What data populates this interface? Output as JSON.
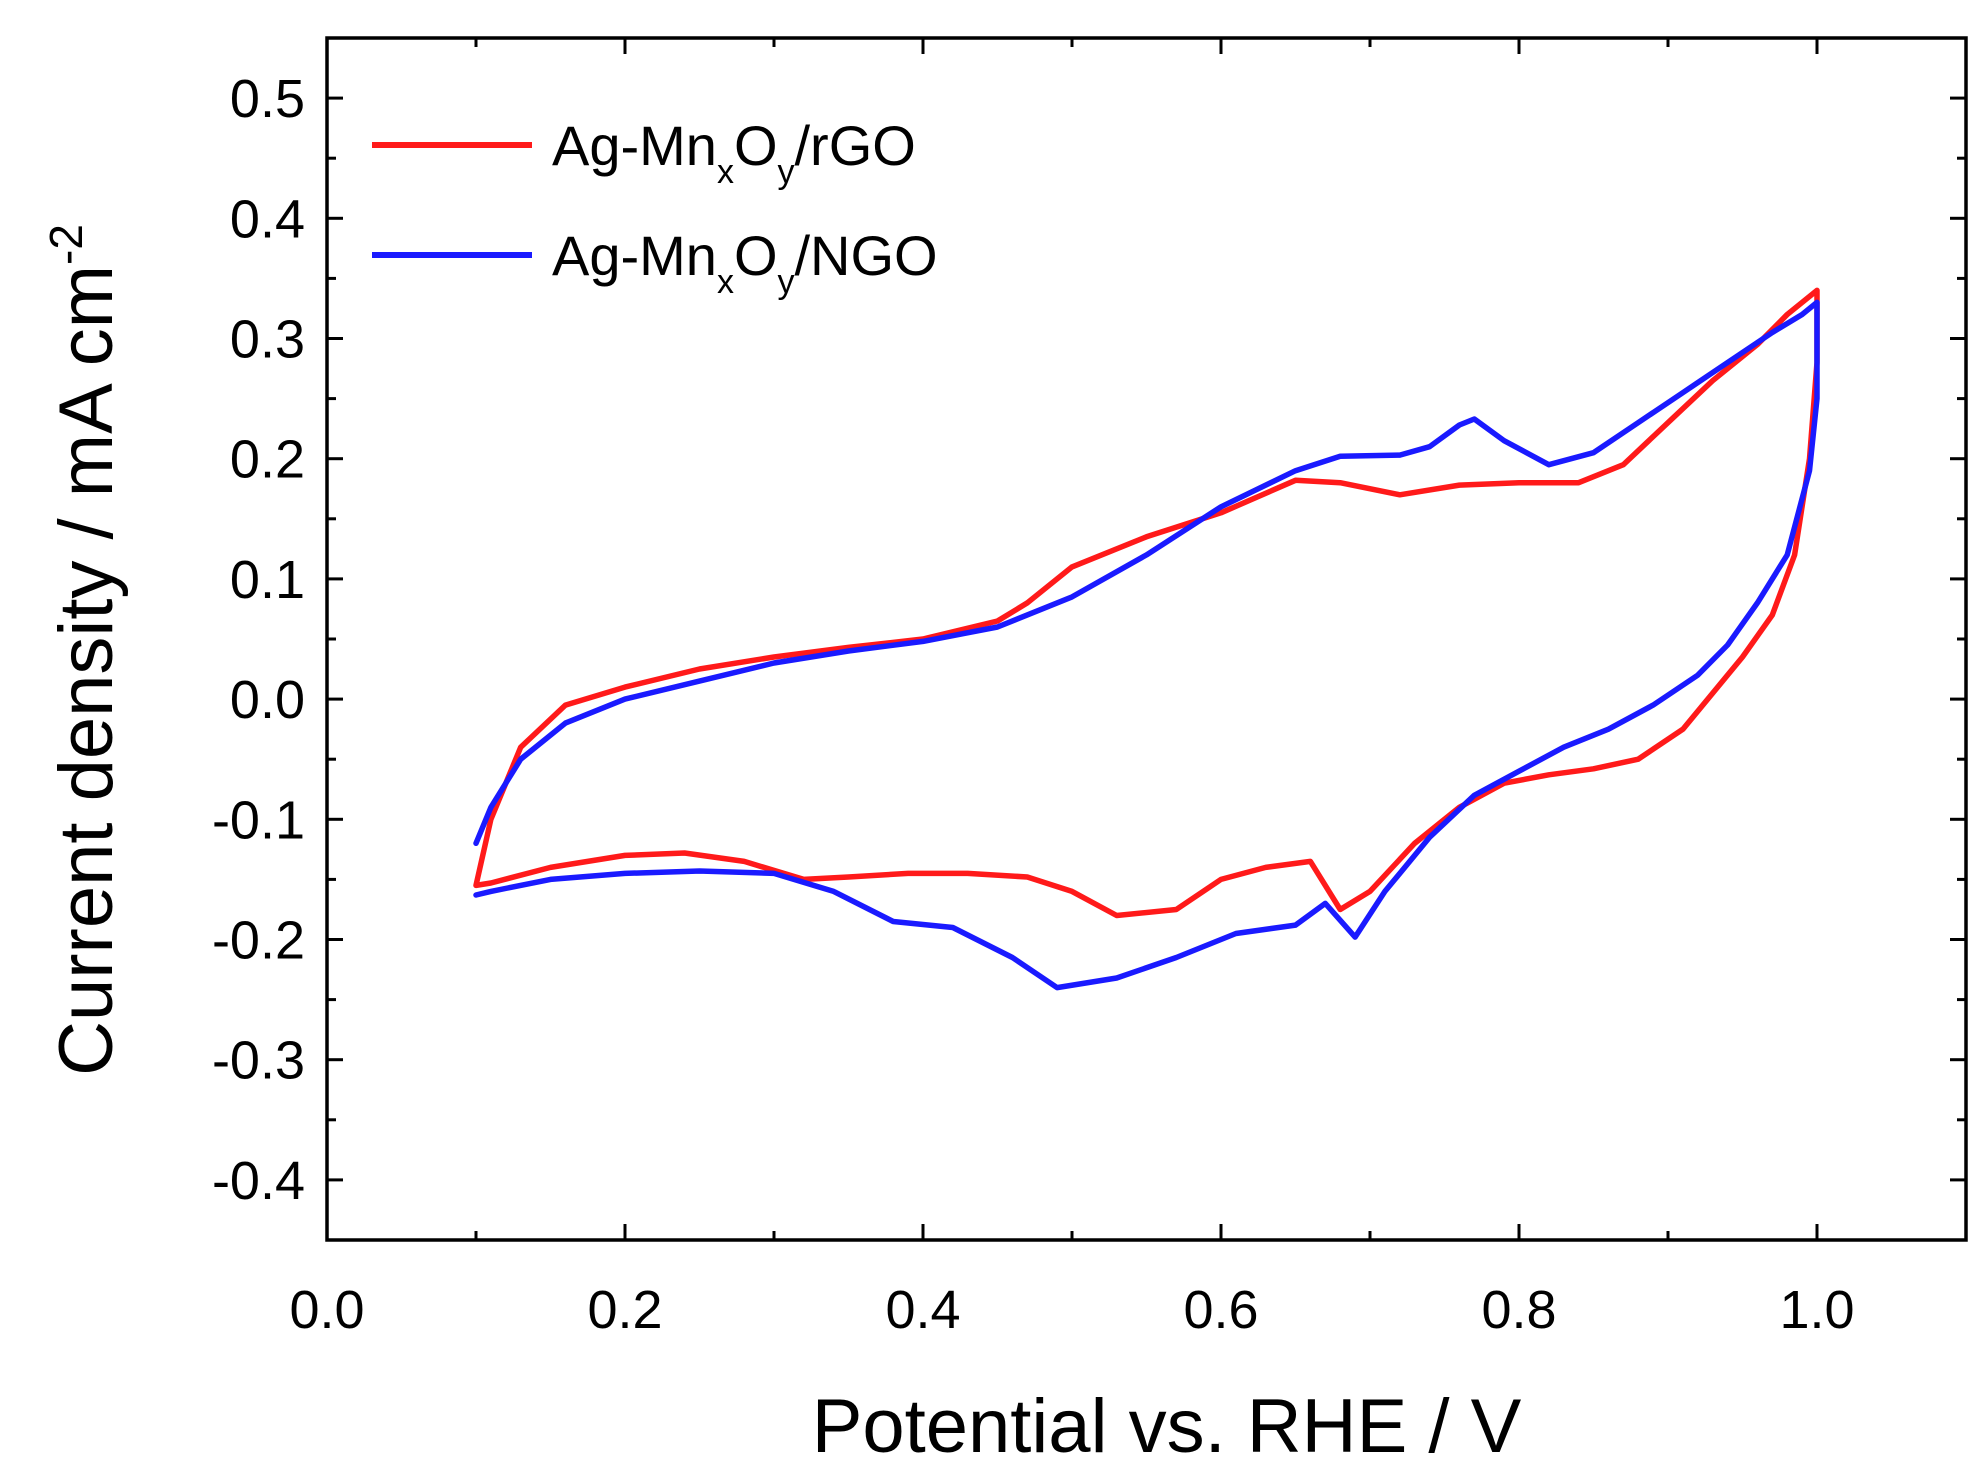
{
  "chart_data": {
    "type": "line",
    "title": "",
    "xlabel": "Potential vs. RHE  /  V",
    "ylabel": "Current density  /   mA cm",
    "ylabel_superscript": "-2",
    "xlim": [
      0.0,
      1.1
    ],
    "ylim": [
      -0.45,
      0.55
    ],
    "xticks": [
      0.0,
      0.2,
      0.4,
      0.6,
      0.8,
      1.0
    ],
    "xtick_labels": [
      "0.0",
      "0.2",
      "0.4",
      "0.6",
      "0.8",
      "1.0"
    ],
    "yticks": [
      -0.4,
      -0.3,
      -0.2,
      -0.1,
      0.0,
      0.1,
      0.2,
      0.3,
      0.4,
      0.5
    ],
    "ytick_labels": [
      "-0.4",
      "-0.3",
      "-0.2",
      "-0.1",
      "0.0",
      "0.1",
      "0.2",
      "0.3",
      "0.4",
      "0.5"
    ],
    "grid": false,
    "legend_position": "top-left",
    "series": [
      {
        "name": "Ag-MnxOy/rGO",
        "legend_parts": [
          "Ag-Mn",
          "x",
          "O",
          "y",
          "/rGO"
        ],
        "color": "#ff1a1a",
        "x": [
          0.1,
          0.11,
          0.13,
          0.16,
          0.2,
          0.25,
          0.3,
          0.35,
          0.4,
          0.45,
          0.47,
          0.5,
          0.55,
          0.6,
          0.65,
          0.68,
          0.72,
          0.76,
          0.8,
          0.84,
          0.87,
          0.9,
          0.93,
          0.96,
          0.98,
          1.0,
          1.0,
          0.995,
          0.985,
          0.97,
          0.95,
          0.93,
          0.91,
          0.88,
          0.85,
          0.82,
          0.79,
          0.76,
          0.73,
          0.7,
          0.68,
          0.66,
          0.63,
          0.6,
          0.57,
          0.53,
          0.5,
          0.47,
          0.43,
          0.39,
          0.35,
          0.32,
          0.28,
          0.24,
          0.2,
          0.15,
          0.11,
          0.1
        ],
        "y": [
          -0.155,
          -0.1,
          -0.04,
          -0.005,
          0.01,
          0.025,
          0.035,
          0.043,
          0.05,
          0.065,
          0.08,
          0.11,
          0.135,
          0.155,
          0.182,
          0.18,
          0.17,
          0.178,
          0.18,
          0.18,
          0.195,
          0.23,
          0.265,
          0.295,
          0.32,
          0.34,
          0.28,
          0.2,
          0.12,
          0.07,
          0.035,
          0.005,
          -0.025,
          -0.05,
          -0.058,
          -0.063,
          -0.07,
          -0.09,
          -0.12,
          -0.16,
          -0.175,
          -0.135,
          -0.14,
          -0.15,
          -0.175,
          -0.18,
          -0.16,
          -0.148,
          -0.145,
          -0.145,
          -0.148,
          -0.15,
          -0.135,
          -0.128,
          -0.13,
          -0.14,
          -0.153,
          -0.155
        ]
      },
      {
        "name": "Ag-MnxOy/NGO",
        "legend_parts": [
          "Ag-Mn",
          "x",
          "O",
          "y",
          "/NGO"
        ],
        "color": "#1a1aff",
        "x": [
          0.1,
          0.11,
          0.13,
          0.16,
          0.2,
          0.25,
          0.3,
          0.35,
          0.4,
          0.45,
          0.5,
          0.55,
          0.6,
          0.65,
          0.68,
          0.72,
          0.74,
          0.76,
          0.77,
          0.79,
          0.82,
          0.85,
          0.88,
          0.91,
          0.94,
          0.97,
          0.99,
          1.0,
          1.0,
          0.995,
          0.98,
          0.96,
          0.94,
          0.92,
          0.89,
          0.86,
          0.83,
          0.8,
          0.77,
          0.74,
          0.71,
          0.69,
          0.67,
          0.65,
          0.61,
          0.57,
          0.53,
          0.49,
          0.46,
          0.42,
          0.38,
          0.34,
          0.3,
          0.25,
          0.2,
          0.15,
          0.11,
          0.1
        ],
        "y": [
          -0.12,
          -0.09,
          -0.05,
          -0.02,
          0.0,
          0.015,
          0.03,
          0.04,
          0.048,
          0.06,
          0.085,
          0.12,
          0.16,
          0.19,
          0.202,
          0.203,
          0.21,
          0.228,
          0.233,
          0.215,
          0.195,
          0.205,
          0.23,
          0.255,
          0.28,
          0.305,
          0.32,
          0.33,
          0.25,
          0.19,
          0.12,
          0.08,
          0.045,
          0.02,
          -0.005,
          -0.025,
          -0.04,
          -0.06,
          -0.08,
          -0.115,
          -0.16,
          -0.198,
          -0.17,
          -0.188,
          -0.195,
          -0.215,
          -0.232,
          -0.24,
          -0.215,
          -0.19,
          -0.185,
          -0.16,
          -0.145,
          -0.143,
          -0.145,
          -0.15,
          -0.16,
          -0.163
        ]
      }
    ]
  }
}
